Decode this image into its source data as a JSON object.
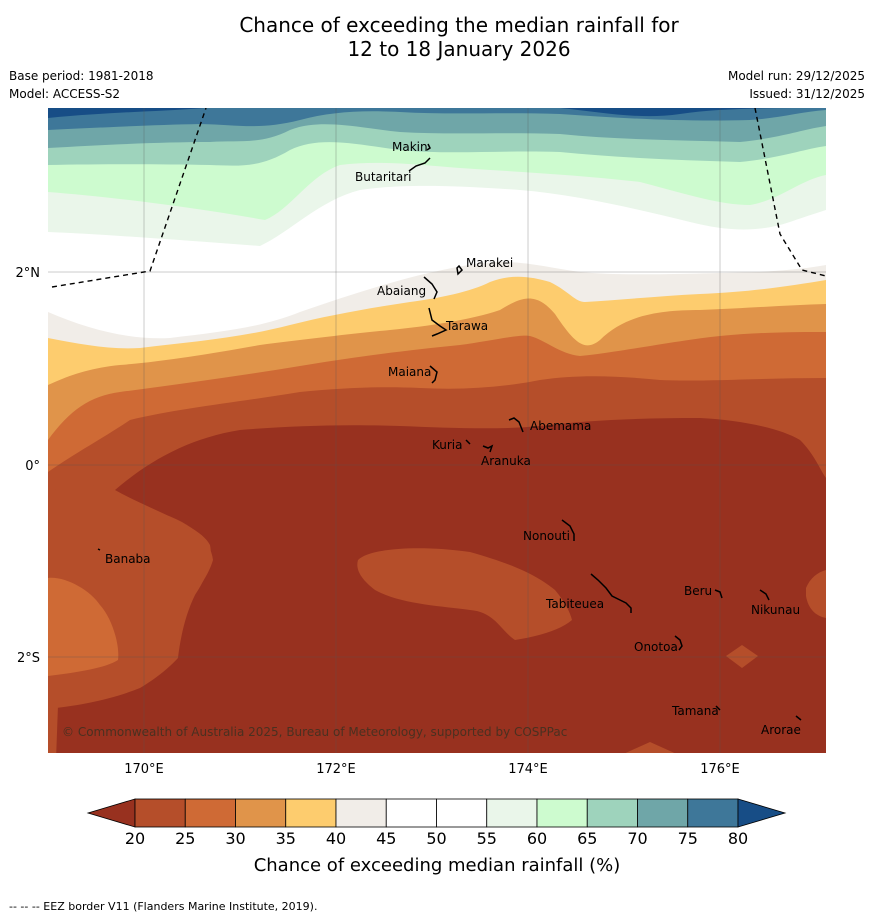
{
  "title": {
    "line1": "Chance of exceeding the median rainfall for",
    "line2": "12 to 18 January 2026"
  },
  "meta": {
    "base_period": "Base period: 1981-2018",
    "model": "Model: ACCESS-S2",
    "model_run": "Model run: 29/12/2025",
    "issued": "Issued: 31/12/2025"
  },
  "colors": {
    "bin_20_25": "#98311f",
    "bin_25_30": "#b54e2a",
    "bin_30_35": "#cf6a35",
    "bin_35_40": "#e0944a",
    "bin_40_45": "#fdcc6e",
    "bin_45_50": "#f1ede8",
    "bin_50_55": "#ffffff",
    "bin_55_60": "#ffffff",
    "bin_60_65": "#eaf6ea",
    "bin_65_70": "#cdfbcf",
    "bin_70_75": "#9ed3bc",
    "bin_75_80": "#6fa6a8",
    "bin_above_80": "#3e7799",
    "bin_extreme": "#174d86"
  },
  "map": {
    "lat_labels": [
      "2°N",
      "0°",
      "2°S"
    ],
    "lon_labels": [
      "170°E",
      "172°E",
      "174°E",
      "176°E"
    ],
    "copyright": "© Commonwealth of Australia 2025, Bureau of Meteorology, supported by COSPPac",
    "places": [
      "Makin",
      "Butaritari",
      "Marakei",
      "Abaiang",
      "Tarawa",
      "Maiana",
      "Abemama",
      "Kuria",
      "Aranuka",
      "Nonouti",
      "Banaba",
      "Beru",
      "Tabiteuea",
      "Nikunau",
      "Onotoa",
      "Tamana",
      "Arorae"
    ]
  },
  "colorbar": {
    "ticks": [
      "20",
      "25",
      "30",
      "35",
      "40",
      "45",
      "50",
      "55",
      "60",
      "65",
      "70",
      "75",
      "80"
    ],
    "label": "Chance of exceeding median rainfall (%)"
  },
  "footnote": "--  --  -- EEZ border V11 (Flanders Marine Institute, 2019)."
}
